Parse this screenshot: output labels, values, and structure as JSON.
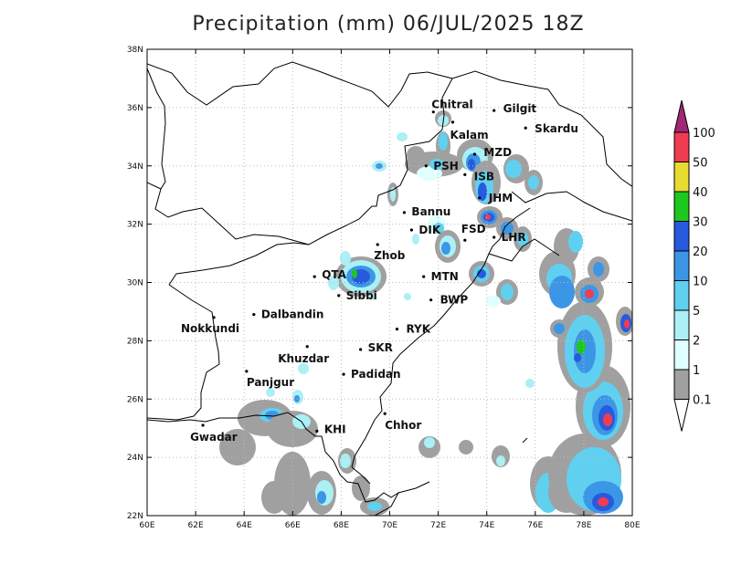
{
  "title": "Precipitation (mm) 06/JUL/2025 18Z",
  "axes": {
    "lon_ticks": [
      "60E",
      "62E",
      "64E",
      "66E",
      "68E",
      "70E",
      "72E",
      "74E",
      "76E",
      "78E",
      "80E"
    ],
    "lat_ticks": [
      "22N",
      "24N",
      "26N",
      "28N",
      "30N",
      "32N",
      "34N",
      "36N",
      "38N"
    ],
    "lon_range": [
      60,
      80
    ],
    "lat_range": [
      22,
      38
    ],
    "grid": true
  },
  "legend": {
    "levels": [
      "0.1",
      "1",
      "2",
      "5",
      "10",
      "20",
      "30",
      "40",
      "50",
      "100"
    ],
    "colors": [
      "#a0a0a0",
      "#e0ffff",
      "#aaf0f5",
      "#60d0f0",
      "#3c96e6",
      "#285ade",
      "#1ec81e",
      "#e6dc32",
      "#f03c50",
      "#a02876"
    ]
  },
  "cities": [
    {
      "name": "Chitral",
      "lon": 71.8,
      "lat": 35.85
    },
    {
      "name": "Gilgit",
      "lon": 74.3,
      "lat": 35.9
    },
    {
      "name": "Kalam",
      "lon": 72.6,
      "lat": 35.5
    },
    {
      "name": "Skardu",
      "lon": 75.6,
      "lat": 35.3
    },
    {
      "name": "MZD",
      "lon": 73.5,
      "lat": 34.4
    },
    {
      "name": "PSH",
      "lon": 71.5,
      "lat": 34.0
    },
    {
      "name": "ISB",
      "lon": 73.1,
      "lat": 33.7
    },
    {
      "name": "JHM",
      "lon": 73.7,
      "lat": 32.9
    },
    {
      "name": "Bannu",
      "lon": 70.6,
      "lat": 32.4
    },
    {
      "name": "DIK",
      "lon": 70.9,
      "lat": 31.8
    },
    {
      "name": "FSD",
      "lon": 73.1,
      "lat": 31.45
    },
    {
      "name": "LHR",
      "lon": 74.3,
      "lat": 31.55
    },
    {
      "name": "Zhob",
      "lon": 69.5,
      "lat": 31.3
    },
    {
      "name": "QTA",
      "lon": 66.9,
      "lat": 30.2
    },
    {
      "name": "MTN",
      "lon": 71.4,
      "lat": 30.2
    },
    {
      "name": "Sibbi",
      "lon": 67.9,
      "lat": 29.55
    },
    {
      "name": "BWP",
      "lon": 71.7,
      "lat": 29.4
    },
    {
      "name": "Dalbandin",
      "lon": 64.4,
      "lat": 28.9
    },
    {
      "name": "Nokkundi",
      "lon": 62.75,
      "lat": 28.8
    },
    {
      "name": "RYK",
      "lon": 70.3,
      "lat": 28.4
    },
    {
      "name": "Khuzdar",
      "lon": 66.6,
      "lat": 27.8
    },
    {
      "name": "SKR",
      "lon": 68.8,
      "lat": 27.7
    },
    {
      "name": "Panjgur",
      "lon": 64.1,
      "lat": 26.95
    },
    {
      "name": "Padidan",
      "lon": 68.1,
      "lat": 26.85
    },
    {
      "name": "Chhor",
      "lon": 69.8,
      "lat": 25.5
    },
    {
      "name": "KHI",
      "lon": 67.0,
      "lat": 24.9
    },
    {
      "name": "Gwadar",
      "lon": 62.3,
      "lat": 25.1
    }
  ]
}
